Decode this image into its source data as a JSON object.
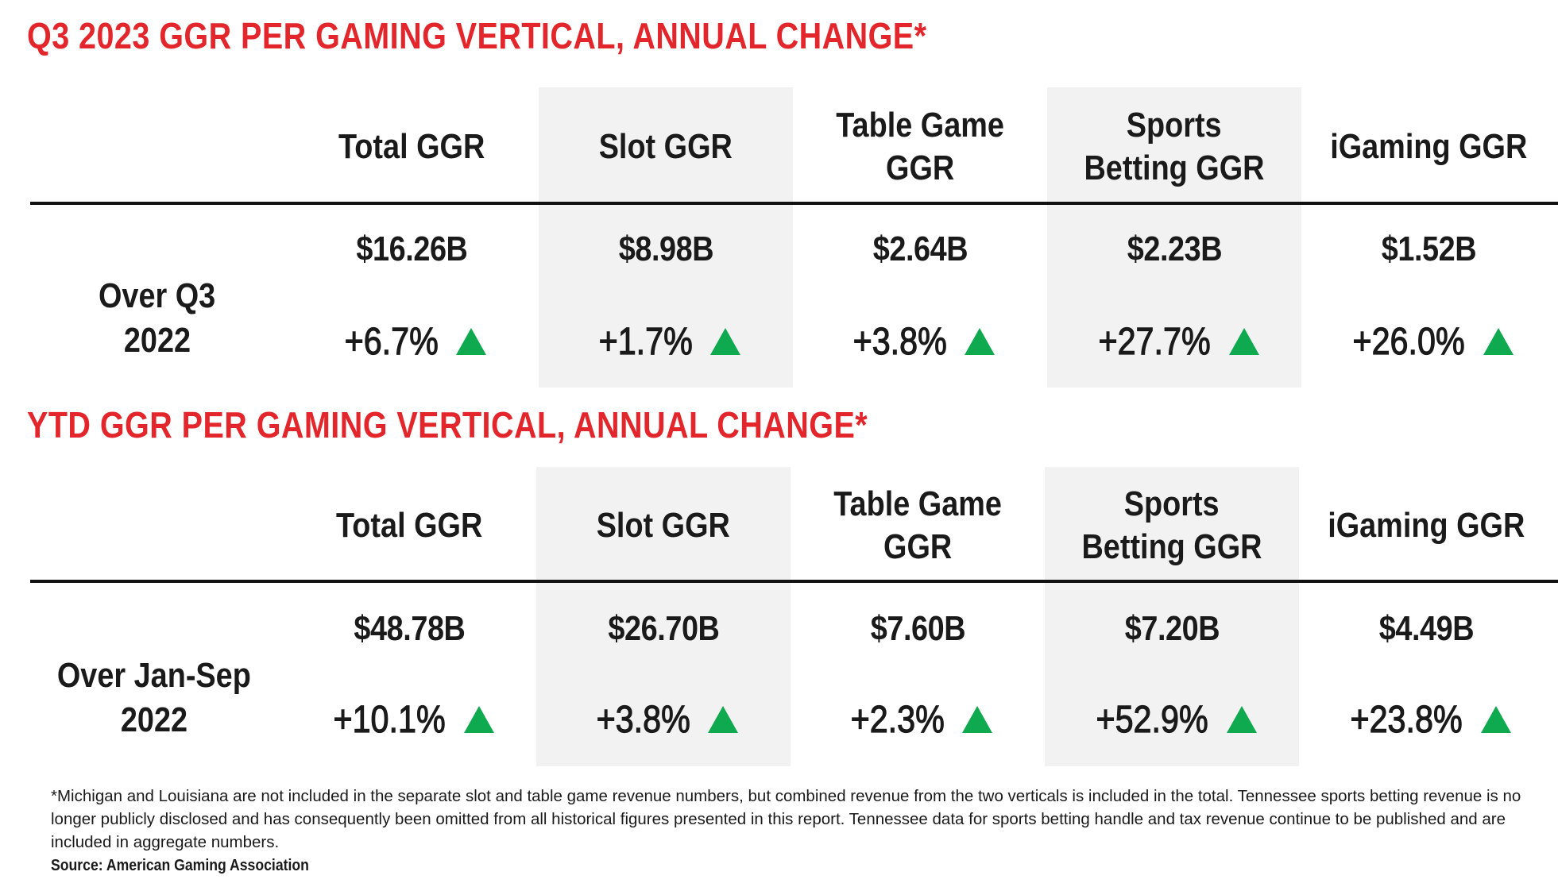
{
  "sections": [
    {
      "title": "Q3 2023 GGR PER GAMING VERTICAL, ANNUAL CHANGE*",
      "row_label": [
        "Over Q3",
        "2022"
      ],
      "columns": [
        {
          "header": [
            "Total GGR"
          ],
          "value": "$16.26B",
          "change": "+6.7%"
        },
        {
          "header": [
            "Slot GGR"
          ],
          "value": "$8.98B",
          "change": "+1.7%"
        },
        {
          "header": [
            "Table Game",
            "GGR"
          ],
          "value": "$2.64B",
          "change": "+3.8%"
        },
        {
          "header": [
            "Sports",
            "Betting GGR"
          ],
          "value": "$2.23B",
          "change": "+27.7%"
        },
        {
          "header": [
            "iGaming GGR"
          ],
          "value": "$1.52B",
          "change": "+26.0%"
        }
      ]
    },
    {
      "title": "YTD GGR PER GAMING VERTICAL, ANNUAL CHANGE*",
      "row_label": [
        "Over Jan-Sep",
        "2022"
      ],
      "columns": [
        {
          "header": [
            "Total GGR"
          ],
          "value": "$48.78B",
          "change": "+10.1%"
        },
        {
          "header": [
            "Slot GGR"
          ],
          "value": "$26.70B",
          "change": "+3.8%"
        },
        {
          "header": [
            "Table Game",
            "GGR"
          ],
          "value": "$7.60B",
          "change": "+2.3%"
        },
        {
          "header": [
            "Sports",
            "Betting GGR"
          ],
          "value": "$7.20B",
          "change": "+52.9%"
        },
        {
          "header": [
            "iGaming GGR"
          ],
          "value": "$4.49B",
          "change": "+23.8%"
        }
      ]
    }
  ],
  "colors": {
    "title": "#e3262b",
    "up_arrow": "#0faa4f",
    "shade": "#f2f2f2"
  },
  "icons": {
    "change_indicator": "triangle-up-icon"
  },
  "footnote": "*Michigan and Louisiana are not included in the separate slot and table game revenue numbers, but combined revenue from the two verticals is included in the total. Tennessee sports betting revenue is no longer publicly disclosed and has consequently been omitted from all historical figures presented in this report. Tennessee data for sports betting handle and tax revenue continue to be published and are included in aggregate numbers.",
  "source": "Source: American Gaming Association"
}
